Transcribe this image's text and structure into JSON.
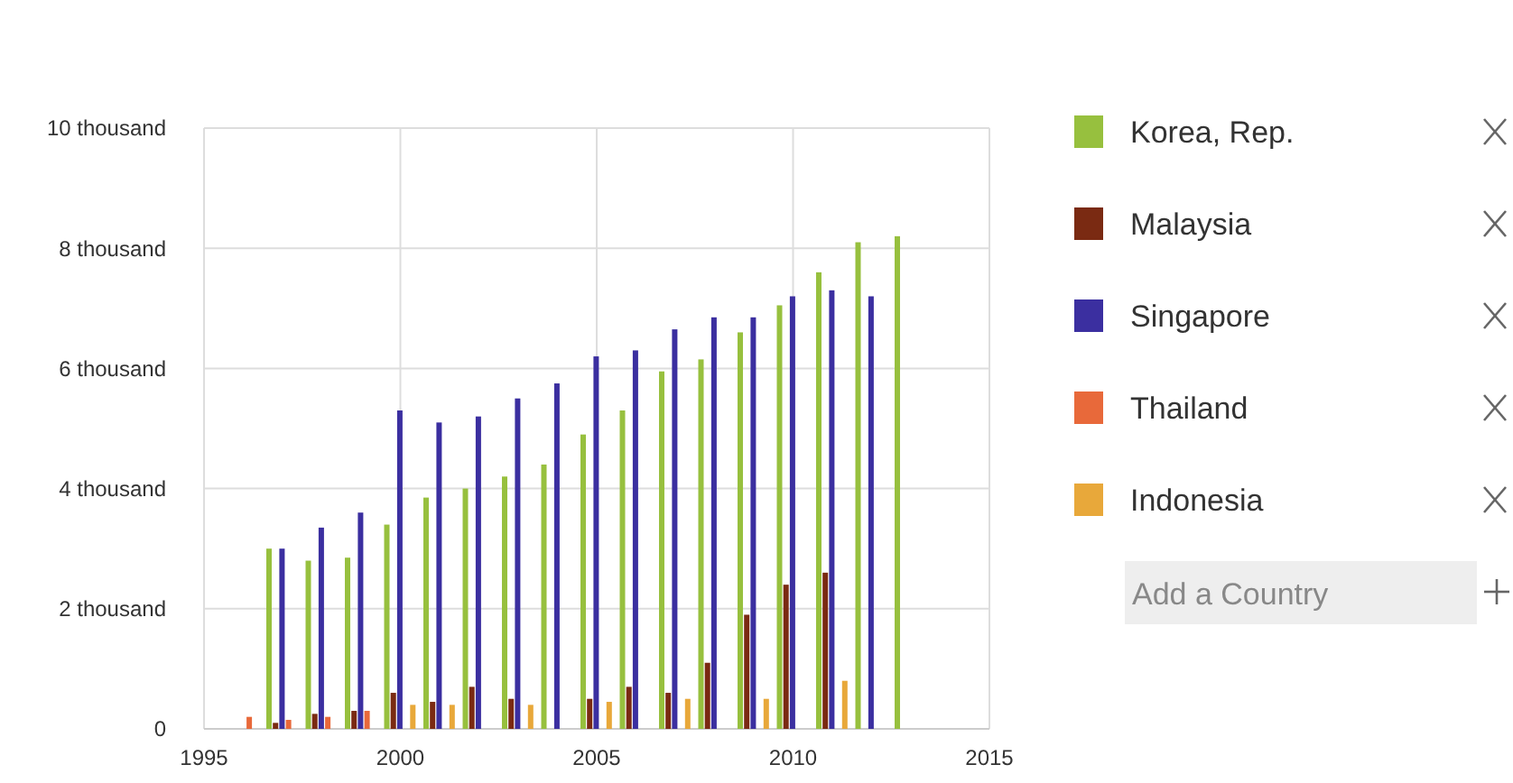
{
  "chart_data": {
    "type": "bar",
    "x": [
      1996,
      1997,
      1998,
      1999,
      2000,
      2001,
      2002,
      2003,
      2004,
      2005,
      2006,
      2007,
      2008,
      2009,
      2010,
      2011,
      2012,
      2013
    ],
    "series": [
      {
        "name": "Korea, Rep.",
        "color": "#97c03e",
        "values": [
          null,
          3.0,
          2.8,
          2.85,
          3.4,
          3.85,
          4.0,
          4.2,
          4.4,
          4.9,
          5.3,
          5.95,
          6.15,
          6.6,
          7.05,
          7.6,
          8.1,
          8.2
        ]
      },
      {
        "name": "Malaysia",
        "color": "#7a2a12",
        "values": [
          null,
          0.1,
          0.25,
          0.3,
          0.6,
          0.45,
          0.7,
          0.5,
          null,
          0.5,
          0.7,
          0.6,
          1.1,
          1.9,
          2.4,
          2.6,
          null,
          null
        ]
      },
      {
        "name": "Singapore",
        "color": "#3b2fa0",
        "values": [
          null,
          3.0,
          3.35,
          3.6,
          5.3,
          5.1,
          5.2,
          5.5,
          5.75,
          6.2,
          6.3,
          6.65,
          6.85,
          6.85,
          7.2,
          7.3,
          7.2,
          null
        ]
      },
      {
        "name": "Thailand",
        "color": "#e8693a",
        "values": [
          0.2,
          0.15,
          0.2,
          0.3,
          null,
          null,
          null,
          null,
          null,
          null,
          null,
          null,
          null,
          null,
          null,
          null,
          null,
          null
        ]
      },
      {
        "name": "Indonesia",
        "color": "#e8a83a",
        "values": [
          null,
          null,
          null,
          null,
          0.4,
          0.4,
          null,
          0.4,
          null,
          0.45,
          null,
          0.5,
          null,
          0.5,
          null,
          0.8,
          null,
          null
        ]
      }
    ],
    "xlim": [
      1995,
      2015
    ],
    "xticks": [
      1995,
      2000,
      2005,
      2010,
      2015
    ],
    "ylim": [
      0,
      10
    ],
    "yticks": [
      {
        "value": 0,
        "label": "0"
      },
      {
        "value": 2,
        "label": "2 thousand"
      },
      {
        "value": 4,
        "label": "4 thousand"
      },
      {
        "value": 6,
        "label": "6 thousand"
      },
      {
        "value": 8,
        "label": "8 thousand"
      },
      {
        "value": 10,
        "label": "10 thousand"
      }
    ],
    "grid": true,
    "legend": "right",
    "annotations": [
      "Add a Country"
    ]
  }
}
